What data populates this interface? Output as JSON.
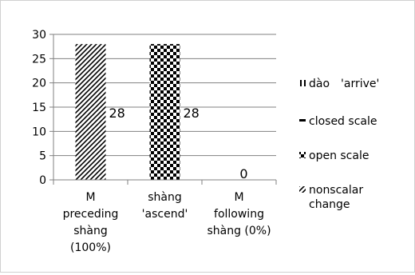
{
  "chart_data": {
    "type": "bar",
    "categories": [
      [
        "M",
        "preceding",
        "shàng",
        "(100%)"
      ],
      [
        "shàng",
        "'ascend'"
      ],
      [
        "M",
        "following",
        "shàng (0%)"
      ]
    ],
    "series": [
      {
        "name": "dào 'arrive'",
        "values": [
          0,
          0,
          0
        ],
        "pattern": "vertical-lines"
      },
      {
        "name": "closed scale",
        "values": [
          0,
          0,
          0
        ],
        "pattern": "solid"
      },
      {
        "name": "open scale",
        "values": [
          0,
          28,
          0
        ],
        "pattern": "checker"
      },
      {
        "name": "nonscalar change",
        "values": [
          28,
          0,
          0
        ],
        "pattern": "diagonal"
      }
    ],
    "data_labels": [
      "28",
      "28",
      "0"
    ],
    "y_ticks": [
      "0",
      "5",
      "10",
      "15",
      "20",
      "25",
      "30"
    ],
    "ylim": [
      0,
      30
    ],
    "grid": true,
    "legend_position": "right",
    "legend": [
      {
        "label": "dào　'arrive'",
        "pattern": "vertical-lines"
      },
      {
        "label": "closed scale",
        "pattern": "solid"
      },
      {
        "label": "open scale",
        "pattern": "checker"
      },
      {
        "label": "nonscalar change",
        "label_lines": [
          "nonscalar",
          "change"
        ],
        "pattern": "diagonal"
      }
    ],
    "colors": {
      "bar": "#000000",
      "grid": "#808080",
      "axis": "#808080"
    }
  }
}
